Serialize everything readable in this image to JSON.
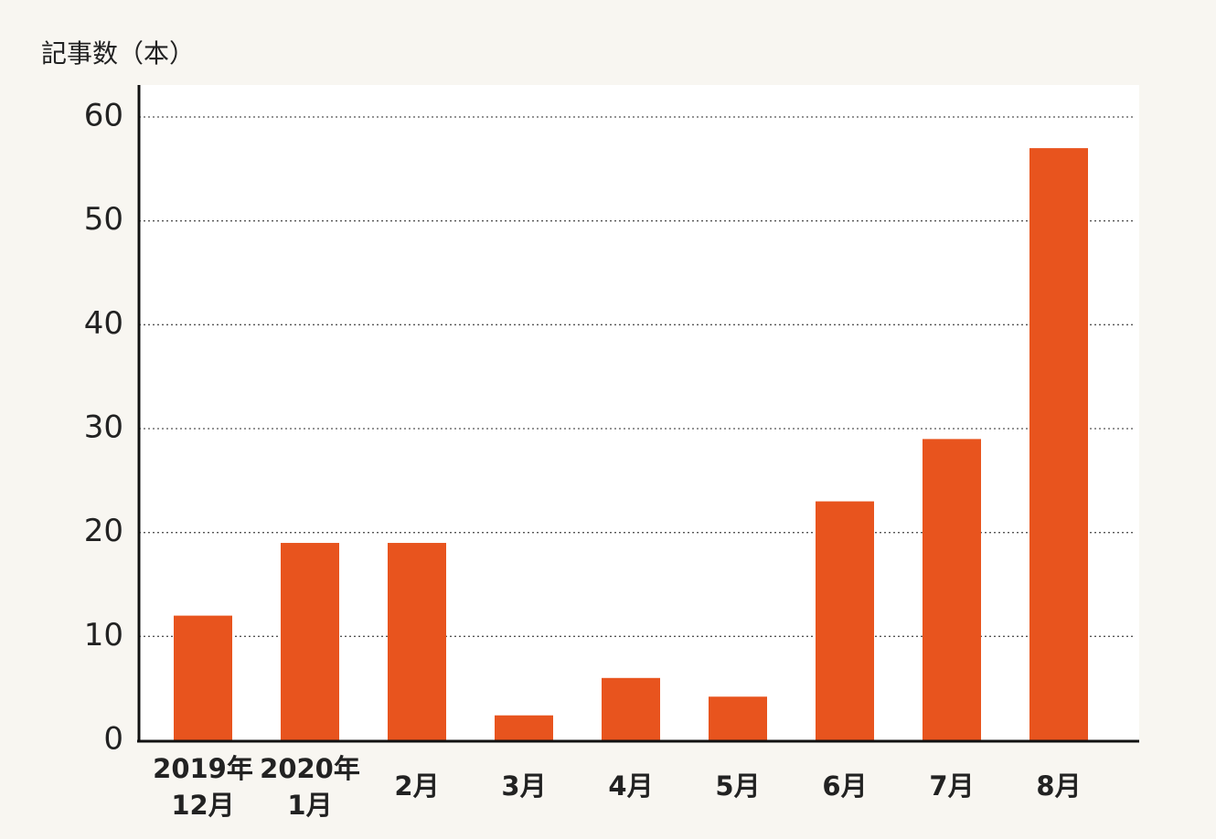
{
  "chart_data": {
    "type": "bar",
    "y_axis_label": "記事数（本）",
    "categories": [
      "2019年\n12月",
      "2020年\n1月",
      "2月",
      "3月",
      "4月",
      "5月",
      "6月",
      "7月",
      "8月"
    ],
    "values": [
      12,
      19,
      19,
      2.4,
      6,
      4.2,
      23,
      29,
      57
    ],
    "color": "#e8541e",
    "ylim": [
      0,
      60
    ],
    "yticks": [
      0,
      10,
      20,
      30,
      40,
      50,
      60
    ],
    "grid": true
  }
}
